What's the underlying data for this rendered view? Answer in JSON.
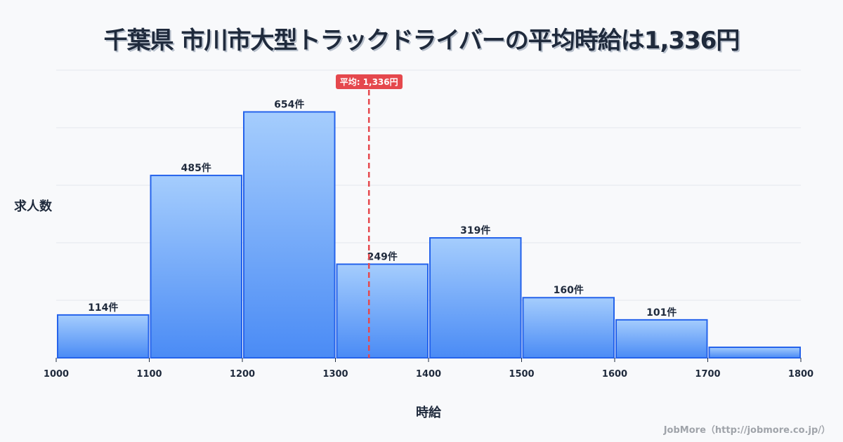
{
  "title": "千葉県 市川市大型トラックドライバーの平均時給は1,336円",
  "y_axis_label": "求人数",
  "x_axis_label": "時給",
  "mean_badge": "平均: 1,336円",
  "footer": "JobMore（http://jobmore.co.jp/）",
  "colors": {
    "bar_top": "#a5cdfd",
    "bar_bottom": "#4a8bf5",
    "bar_border": "#2563eb",
    "mean_line": "#e5484d",
    "grid": "#e3e6ec",
    "text": "#1f2a3c"
  },
  "chart_data": {
    "type": "bar",
    "title": "千葉県 市川市大型トラックドライバーの平均時給は1,336円",
    "xlabel": "時給",
    "ylabel": "求人数",
    "bins": [
      [
        1000,
        1100
      ],
      [
        1100,
        1200
      ],
      [
        1200,
        1300
      ],
      [
        1300,
        1400
      ],
      [
        1400,
        1500
      ],
      [
        1500,
        1600
      ],
      [
        1600,
        1700
      ],
      [
        1700,
        1800
      ]
    ],
    "categories": [
      "1000-1100",
      "1100-1200",
      "1200-1300",
      "1300-1400",
      "1400-1500",
      "1500-1600",
      "1600-1700",
      "1700-1800"
    ],
    "values": [
      114,
      485,
      654,
      249,
      319,
      160,
      101,
      28
    ],
    "value_labels": [
      "114件",
      "485件",
      "654件",
      "249件",
      "319件",
      "160件",
      "101件",
      ""
    ],
    "x_ticks": [
      1000,
      1100,
      1200,
      1300,
      1400,
      1500,
      1600,
      1700,
      1800
    ],
    "xlim": [
      1000,
      1800
    ],
    "ylim": [
      0,
      765
    ],
    "grid": true,
    "mean": 1336,
    "mean_label": "平均: 1,336円"
  }
}
